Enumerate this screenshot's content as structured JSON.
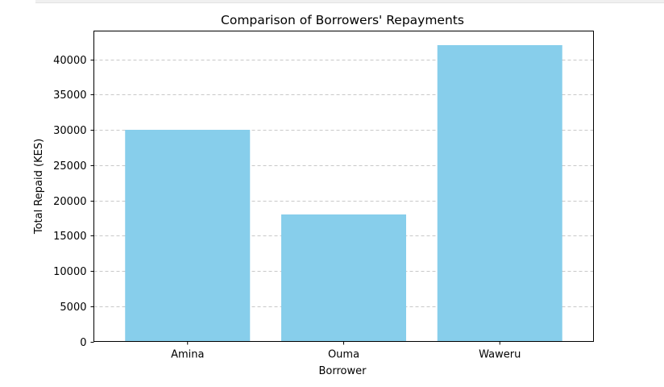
{
  "chart_data": {
    "type": "bar",
    "title": "Comparison of Borrowers' Repayments",
    "xlabel": "Borrower",
    "ylabel": "Total Repaid (KES)",
    "categories": [
      "Amina",
      "Ouma",
      "Waweru"
    ],
    "values": [
      30000,
      18000,
      42000
    ],
    "ylim": [
      0,
      44000
    ],
    "yticks": [
      0,
      5000,
      10000,
      15000,
      20000,
      25000,
      30000,
      35000,
      40000
    ],
    "bar_color": "#87ceeb",
    "grid": "y-dashed",
    "grid_color": "#c8c8c8"
  }
}
